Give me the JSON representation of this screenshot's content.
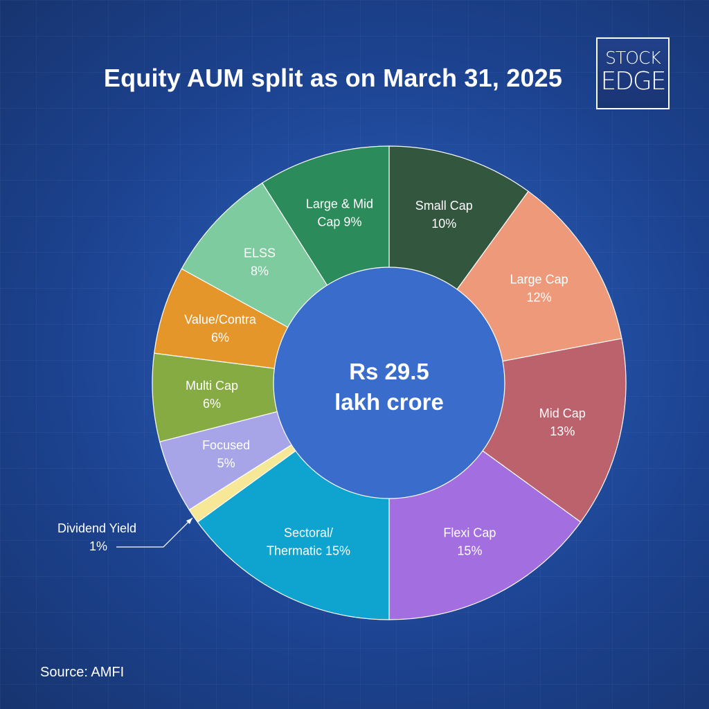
{
  "header": {
    "title": "Equity AUM split as on March 31, 2025"
  },
  "logo": {
    "line1": "STOCK",
    "line2": "EDGE"
  },
  "center": {
    "line1": "Rs 29.5",
    "line2": "lakh crore"
  },
  "footer": {
    "source": "Source: AMFI"
  },
  "chart_data": {
    "type": "pie",
    "variant": "donut",
    "title": "Equity AUM split as on March 31, 2025",
    "center_label": "Rs 29.5 lakh crore",
    "unit": "%",
    "start_angle": "12 o'clock, clockwise",
    "categories": [
      "Small Cap",
      "Large Cap",
      "Mid Cap",
      "Flexi Cap",
      "Sectoral/Thermatic",
      "Dividend Yield",
      "Focused",
      "Multi Cap",
      "Value/Contra",
      "ELSS",
      "Large & Mid Cap"
    ],
    "values": [
      10,
      12,
      13,
      15,
      15,
      1,
      5,
      6,
      6,
      8,
      9
    ],
    "slices": [
      {
        "name": "Small Cap",
        "value": 10,
        "color": "#33563f",
        "label": [
          "Small Cap",
          "10%"
        ]
      },
      {
        "name": "Large Cap",
        "value": 12,
        "color": "#ef997b",
        "label": [
          "Large Cap",
          "12%"
        ]
      },
      {
        "name": "Mid Cap",
        "value": 13,
        "color": "#bc626c",
        "label": [
          "Mid Cap",
          "13%"
        ]
      },
      {
        "name": "Flexi Cap",
        "value": 15,
        "color": "#a36fe0",
        "label": [
          "Flexi Cap",
          "15%"
        ]
      },
      {
        "name": "Sectoral/Thermatic",
        "value": 15,
        "color": "#0fa4cf",
        "label": [
          "Sectoral/",
          "Thermatic 15%"
        ]
      },
      {
        "name": "Dividend Yield",
        "value": 1,
        "color": "#f6e897",
        "label": null,
        "callout": [
          "Dividend Yield",
          "1%"
        ]
      },
      {
        "name": "Focused",
        "value": 5,
        "color": "#a7a4e8",
        "label": [
          "Focused",
          "5%"
        ]
      },
      {
        "name": "Multi Cap",
        "value": 6,
        "color": "#86ab43",
        "label": [
          "Multi Cap",
          "6%"
        ]
      },
      {
        "name": "Value/Contra",
        "value": 6,
        "color": "#e4962b",
        "label": [
          "Value/Contra",
          "6%"
        ]
      },
      {
        "name": "ELSS",
        "value": 8,
        "color": "#7dcb9f",
        "label": [
          "ELSS",
          "8%"
        ]
      },
      {
        "name": "Large & Mid Cap",
        "value": 9,
        "color": "#2b8b5a",
        "label": [
          "Large & Mid",
          "Cap 9%"
        ]
      }
    ],
    "legend": "none (labels on slices)",
    "source": "AMFI"
  }
}
